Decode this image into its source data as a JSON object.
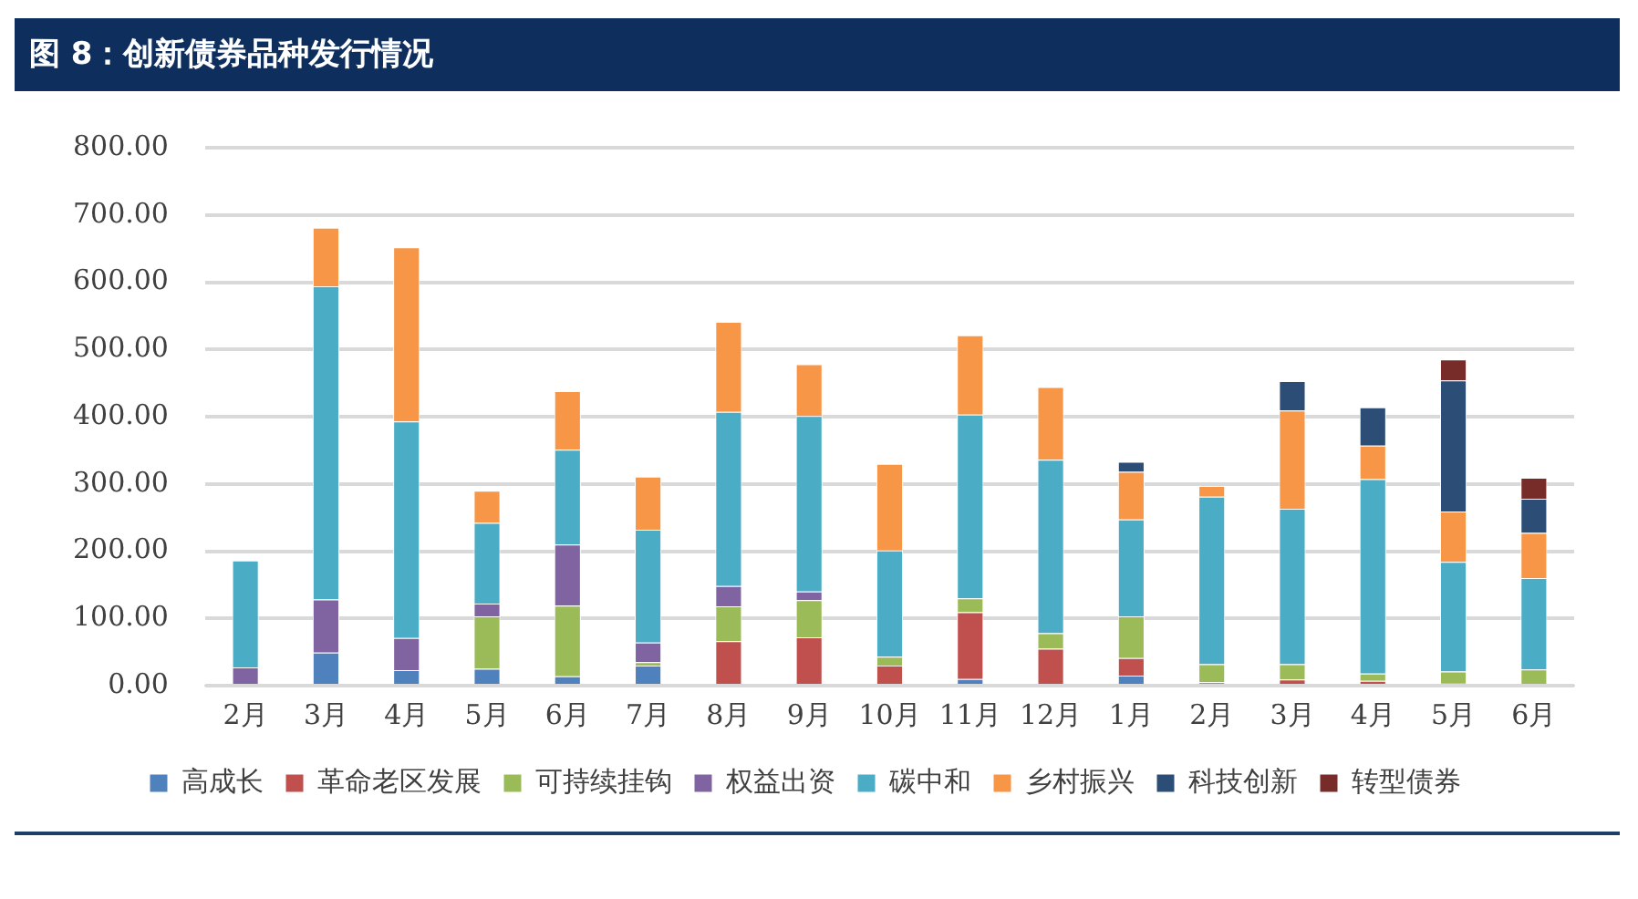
{
  "chart_data": {
    "type": "bar",
    "title": "图 8：创新债券品种发行情况",
    "stacked": true,
    "grid": "y",
    "legend": "bottom",
    "categories": [
      "2月",
      "3月",
      "4月",
      "5月",
      "6月",
      "7月",
      "8月",
      "9月",
      "10月",
      "11月",
      "12月",
      "1月",
      "2月",
      "3月",
      "4月",
      "5月",
      "6月"
    ],
    "ylim": [
      0,
      800
    ],
    "yticks": [
      {
        "value": 0,
        "label": "0.00"
      },
      {
        "value": 100,
        "label": "100.00"
      },
      {
        "value": 200,
        "label": "200.00"
      },
      {
        "value": 300,
        "label": "300.00"
      },
      {
        "value": 400,
        "label": "400.00"
      },
      {
        "value": 500,
        "label": "500.00"
      },
      {
        "value": 600,
        "label": "600.00"
      },
      {
        "value": 700,
        "label": "700.00"
      },
      {
        "value": 800,
        "label": "800.00"
      }
    ],
    "series": [
      {
        "name": "高成长",
        "color": "#4f81bd",
        "values": [
          0,
          49,
          23,
          25,
          14,
          30,
          null,
          0,
          0,
          10,
          0,
          15,
          0,
          0,
          0,
          4,
          0
        ]
      },
      {
        "name": "革命老区发展",
        "color": "#c0504d",
        "values": [
          0,
          0,
          0,
          0,
          0,
          0,
          66,
          72,
          30,
          99,
          55,
          26,
          5,
          9,
          7,
          0,
          0
        ]
      },
      {
        "name": "可持续挂钩",
        "color": "#9bbb59",
        "values": [
          0,
          0,
          0,
          78,
          105,
          5,
          52,
          55,
          13,
          21,
          23,
          62,
          27,
          23,
          11,
          17,
          24
        ]
      },
      {
        "name": "权益出资",
        "color": "#8064a2",
        "values": [
          27,
          79,
          48,
          19,
          91,
          29,
          30,
          13,
          0,
          0,
          0,
          0,
          0,
          0,
          0,
          0,
          0
        ]
      },
      {
        "name": "碳中和",
        "color": "#4bacc6",
        "values": [
          159,
          466,
          322,
          120,
          141,
          168,
          259,
          261,
          158,
          273,
          258,
          144,
          249,
          231,
          289,
          163,
          136
        ]
      },
      {
        "name": "乡村振兴",
        "color": "#f79646",
        "values": [
          0,
          87,
          259,
          48,
          87,
          79,
          134,
          77,
          129,
          118,
          108,
          71,
          16,
          146,
          50,
          75,
          67
        ]
      },
      {
        "name": "科技创新",
        "color": "#2c4d75",
        "values": [
          0,
          0,
          0,
          0,
          0,
          0,
          0,
          0,
          0,
          0,
          0,
          15,
          0,
          44,
          57,
          195,
          51
        ]
      },
      {
        "name": "转型债券",
        "color": "#772c2a",
        "values": [
          0,
          0,
          0,
          0,
          0,
          0,
          0,
          0,
          0,
          0,
          0,
          0,
          0,
          0,
          0,
          31,
          31
        ]
      }
    ]
  }
}
